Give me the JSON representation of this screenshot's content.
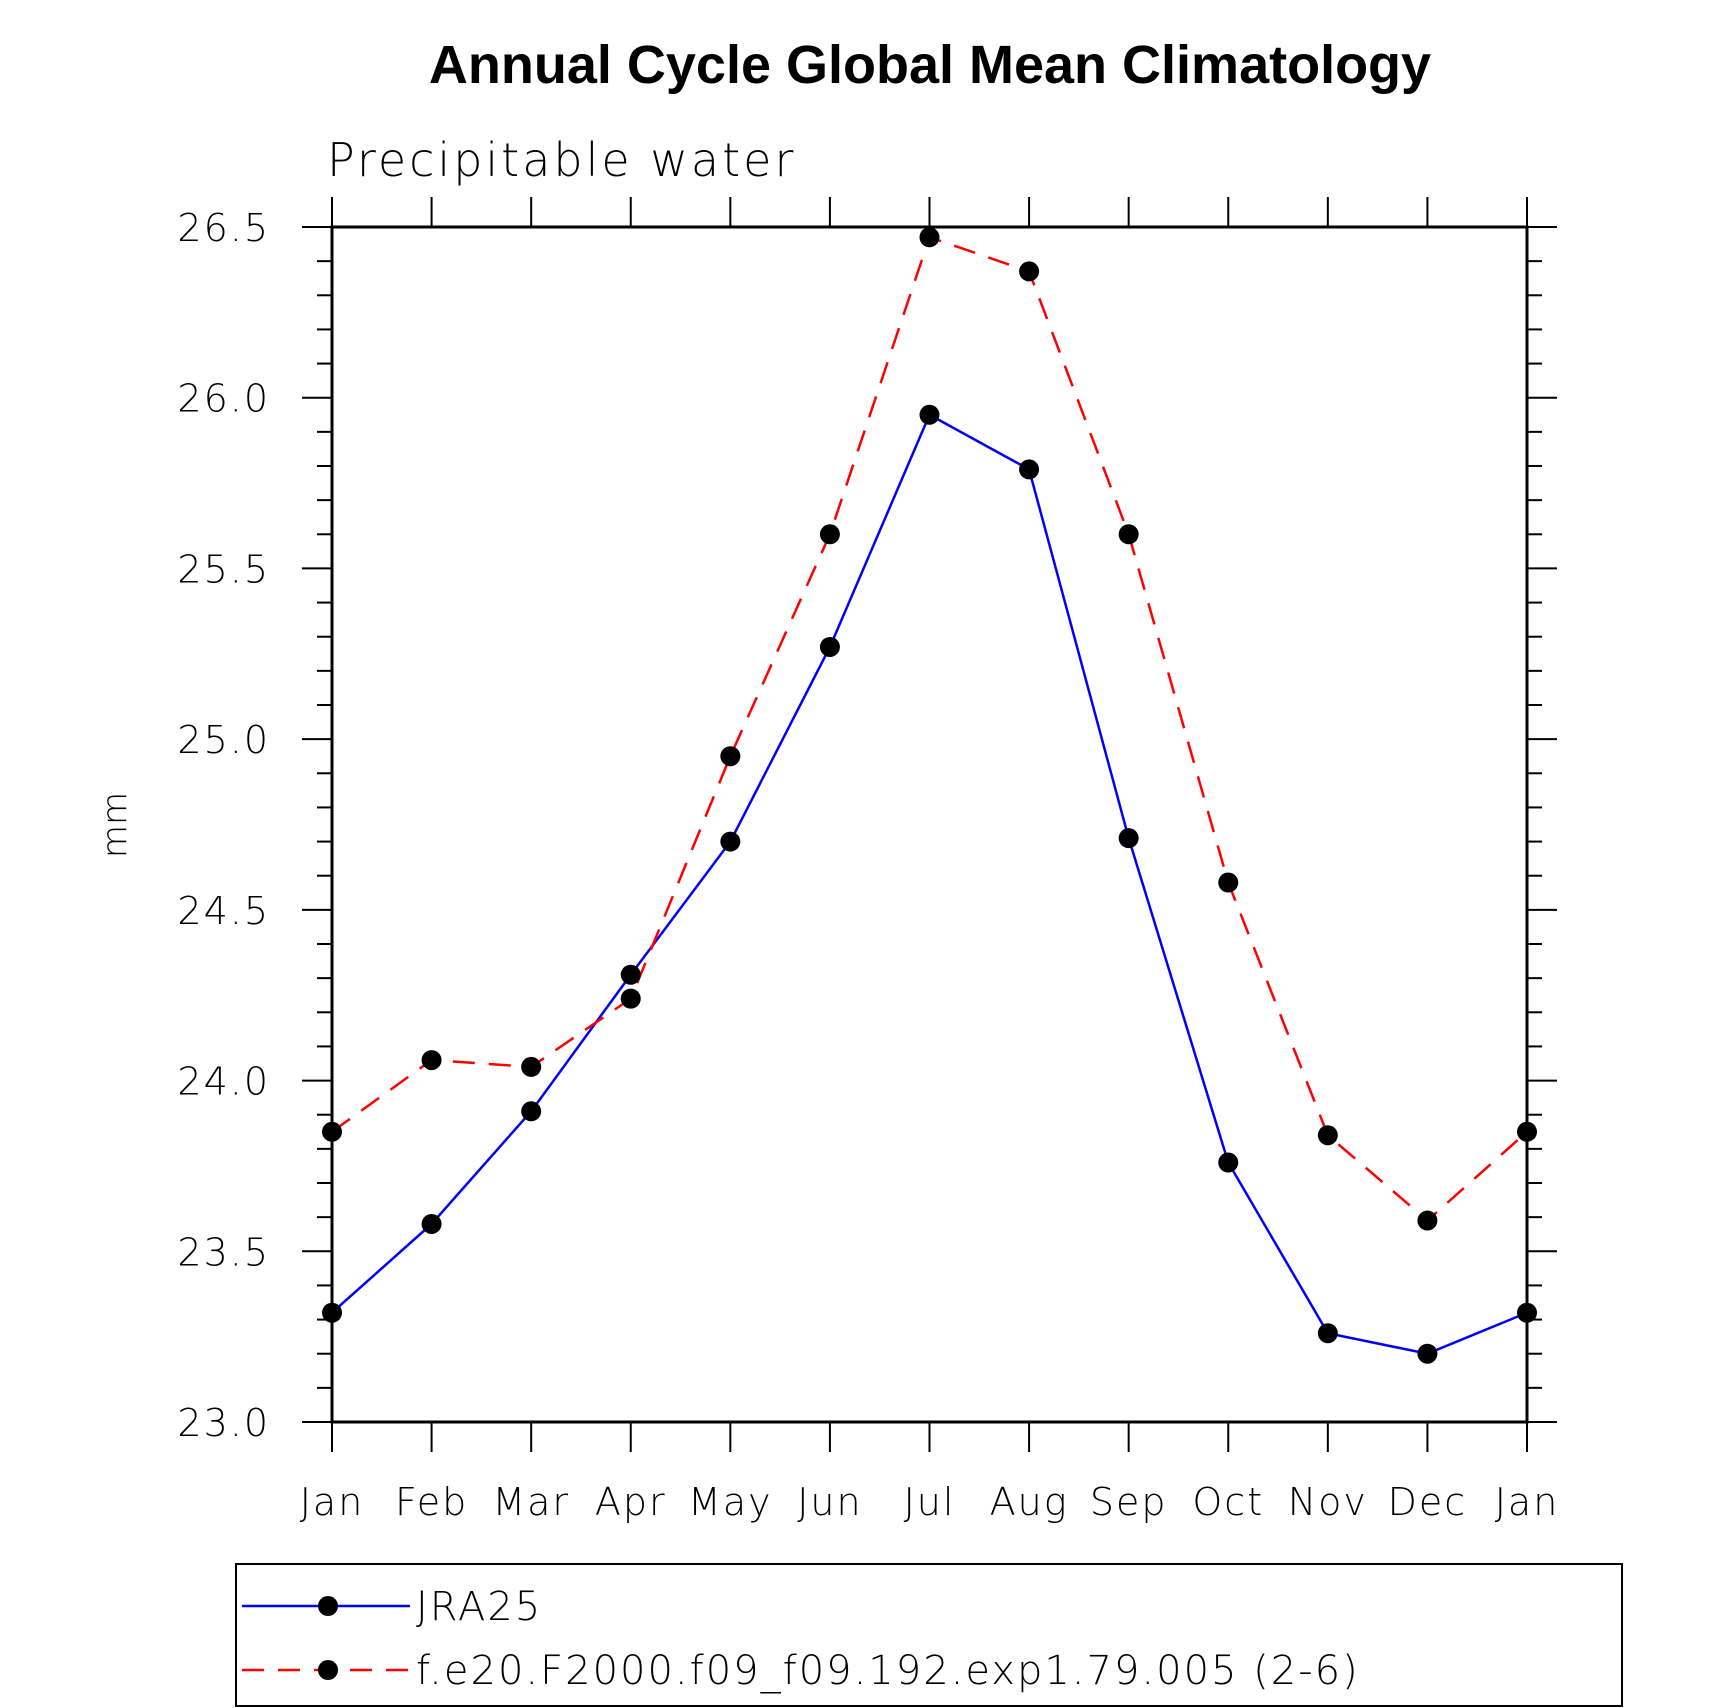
{
  "chart_data": {
    "type": "line",
    "title": "Annual Cycle Global Mean Climatology",
    "subtitle": "Precipitable water",
    "ylabel": "mm",
    "xlabel": "",
    "ylim": [
      23.0,
      26.5
    ],
    "yticks": [
      "23.0",
      "23.5",
      "24.0",
      "24.5",
      "25.0",
      "25.5",
      "26.0",
      "26.5"
    ],
    "categories": [
      "Jan",
      "Feb",
      "Mar",
      "Apr",
      "May",
      "Jun",
      "Jul",
      "Aug",
      "Sep",
      "Oct",
      "Nov",
      "Dec",
      "Jan"
    ],
    "grid": false,
    "legend_position": "bottom",
    "series": [
      {
        "name": "JRA25",
        "color": "#0000ff",
        "dash": "solid",
        "marker": "filled-circle",
        "values": [
          23.32,
          23.58,
          23.91,
          24.31,
          24.7,
          25.27,
          25.95,
          25.79,
          24.71,
          23.76,
          23.26,
          23.2,
          23.32
        ]
      },
      {
        "name": "f.e20.F2000.f09_f09.192.exp1.79.005 (2-6)",
        "color": "#ff0000",
        "dash": "dashed",
        "marker": "filled-circle",
        "values": [
          23.85,
          24.06,
          24.04,
          24.24,
          24.95,
          25.6,
          26.47,
          26.37,
          25.6,
          24.58,
          23.84,
          23.59,
          23.85
        ]
      }
    ]
  }
}
